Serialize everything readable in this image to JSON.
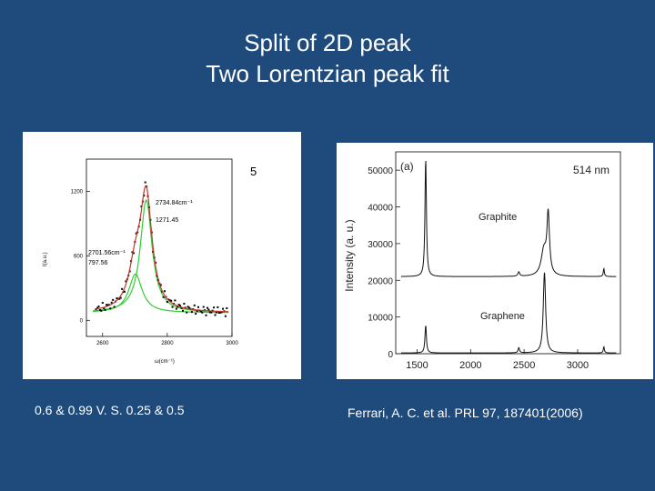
{
  "slide": {
    "title_line1": "Split of 2D peak",
    "title_line2": "Two Lorentzian peak fit",
    "caption_left": "0.6 & 0.99 V. S. 0.25 & 0.5",
    "caption_right": "Ferrari, A. C. et al. PRL 97, 187401(2006)"
  },
  "colors": {
    "background": "#1f4a7c",
    "fit_red": "#c0392b",
    "fit_green": "#33cc33",
    "data_black": "#000000"
  },
  "chart_data": [
    {
      "type": "line",
      "panel_label": "5",
      "xlabel": "ω(cm⁻¹)",
      "ylabel": "I(a.u.)",
      "xlim": [
        2550,
        3000
      ],
      "ylim": [
        -150,
        1500
      ],
      "x_ticks": [
        "2600",
        "2800",
        "3000"
      ],
      "y_ticks": [
        "0",
        "600",
        "1200"
      ],
      "peaks": [
        {
          "center": 2701.56,
          "height": 360,
          "hwhm": 25,
          "label_line1": "2701.56cm⁻¹",
          "label_line2": "797.56"
        },
        {
          "center": 2734.84,
          "height": 1050,
          "hwhm": 22,
          "label_line1": "2734.84cm⁻¹",
          "label_line2": "1271.45"
        }
      ],
      "baseline": 70,
      "series": [
        {
          "name": "",
          "style": "scatter"
        },
        {
          "name": "",
          "style": "fit-sum"
        },
        {
          "name": "",
          "style": "fit-components"
        }
      ]
    },
    {
      "type": "line",
      "panel_label": "(a)",
      "wavelength_label": "514 nm",
      "xlabel": "",
      "ylabel": "Intensity (a. u.)",
      "xlim": [
        1300,
        3400
      ],
      "ylim": [
        0,
        55000
      ],
      "x_ticks": [
        "1500",
        "2000",
        "2500",
        "3000"
      ],
      "y_ticks": [
        "0",
        "10000",
        "20000",
        "30000",
        "40000",
        "50000"
      ],
      "series": [
        {
          "name": "Graphite",
          "offset": 21000,
          "peaks": [
            {
              "center": 1580,
              "height": 32000,
              "hwhm": 8
            },
            {
              "center": 2450,
              "height": 1200,
              "hwhm": 10
            },
            {
              "center": 2685,
              "height": 7000,
              "hwhm": 30
            },
            {
              "center": 2725,
              "height": 16000,
              "hwhm": 14
            },
            {
              "center": 3245,
              "height": 2200,
              "hwhm": 6
            }
          ]
        },
        {
          "name": "Graphene",
          "offset": 200,
          "peaks": [
            {
              "center": 1580,
              "height": 7500,
              "hwhm": 8
            },
            {
              "center": 2450,
              "height": 1400,
              "hwhm": 8
            },
            {
              "center": 2690,
              "height": 22000,
              "hwhm": 13
            },
            {
              "center": 3245,
              "height": 1700,
              "hwhm": 6
            }
          ]
        }
      ]
    }
  ]
}
